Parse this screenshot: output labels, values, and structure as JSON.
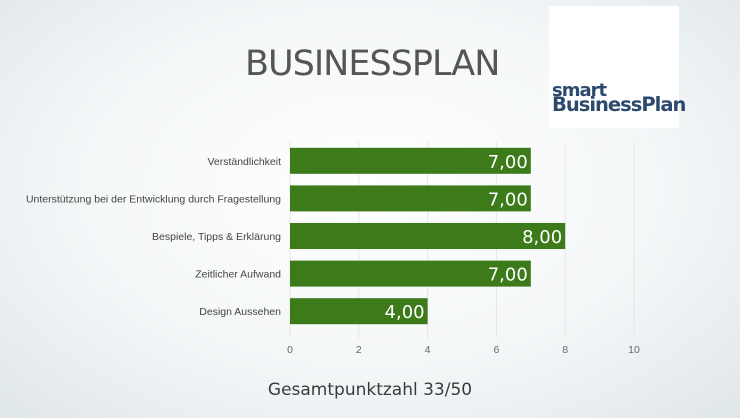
{
  "title": "BUSINESSPLAN",
  "logo": {
    "line1": "smart",
    "line2": "BusinessPlan"
  },
  "footer": "Gesamtpunktzahl 33/50",
  "chart_data": {
    "type": "bar",
    "orientation": "horizontal",
    "categories": [
      "Verständlichkeit",
      "Unterstützung bei der Entwicklung durch Fragestellung",
      "Bespiele, Tipps & Erklärung",
      "Zeitlicher Aufwand",
      "Design Aussehen"
    ],
    "values": [
      7,
      7,
      8,
      7,
      4
    ],
    "data_labels": [
      "7,00",
      "7,00",
      "8,00",
      "7,00",
      "4,00"
    ],
    "xlim": [
      0,
      10
    ],
    "xticks": [
      0,
      2,
      4,
      6,
      8,
      10
    ],
    "bar_color": "#3c7a1a",
    "grid": true
  }
}
